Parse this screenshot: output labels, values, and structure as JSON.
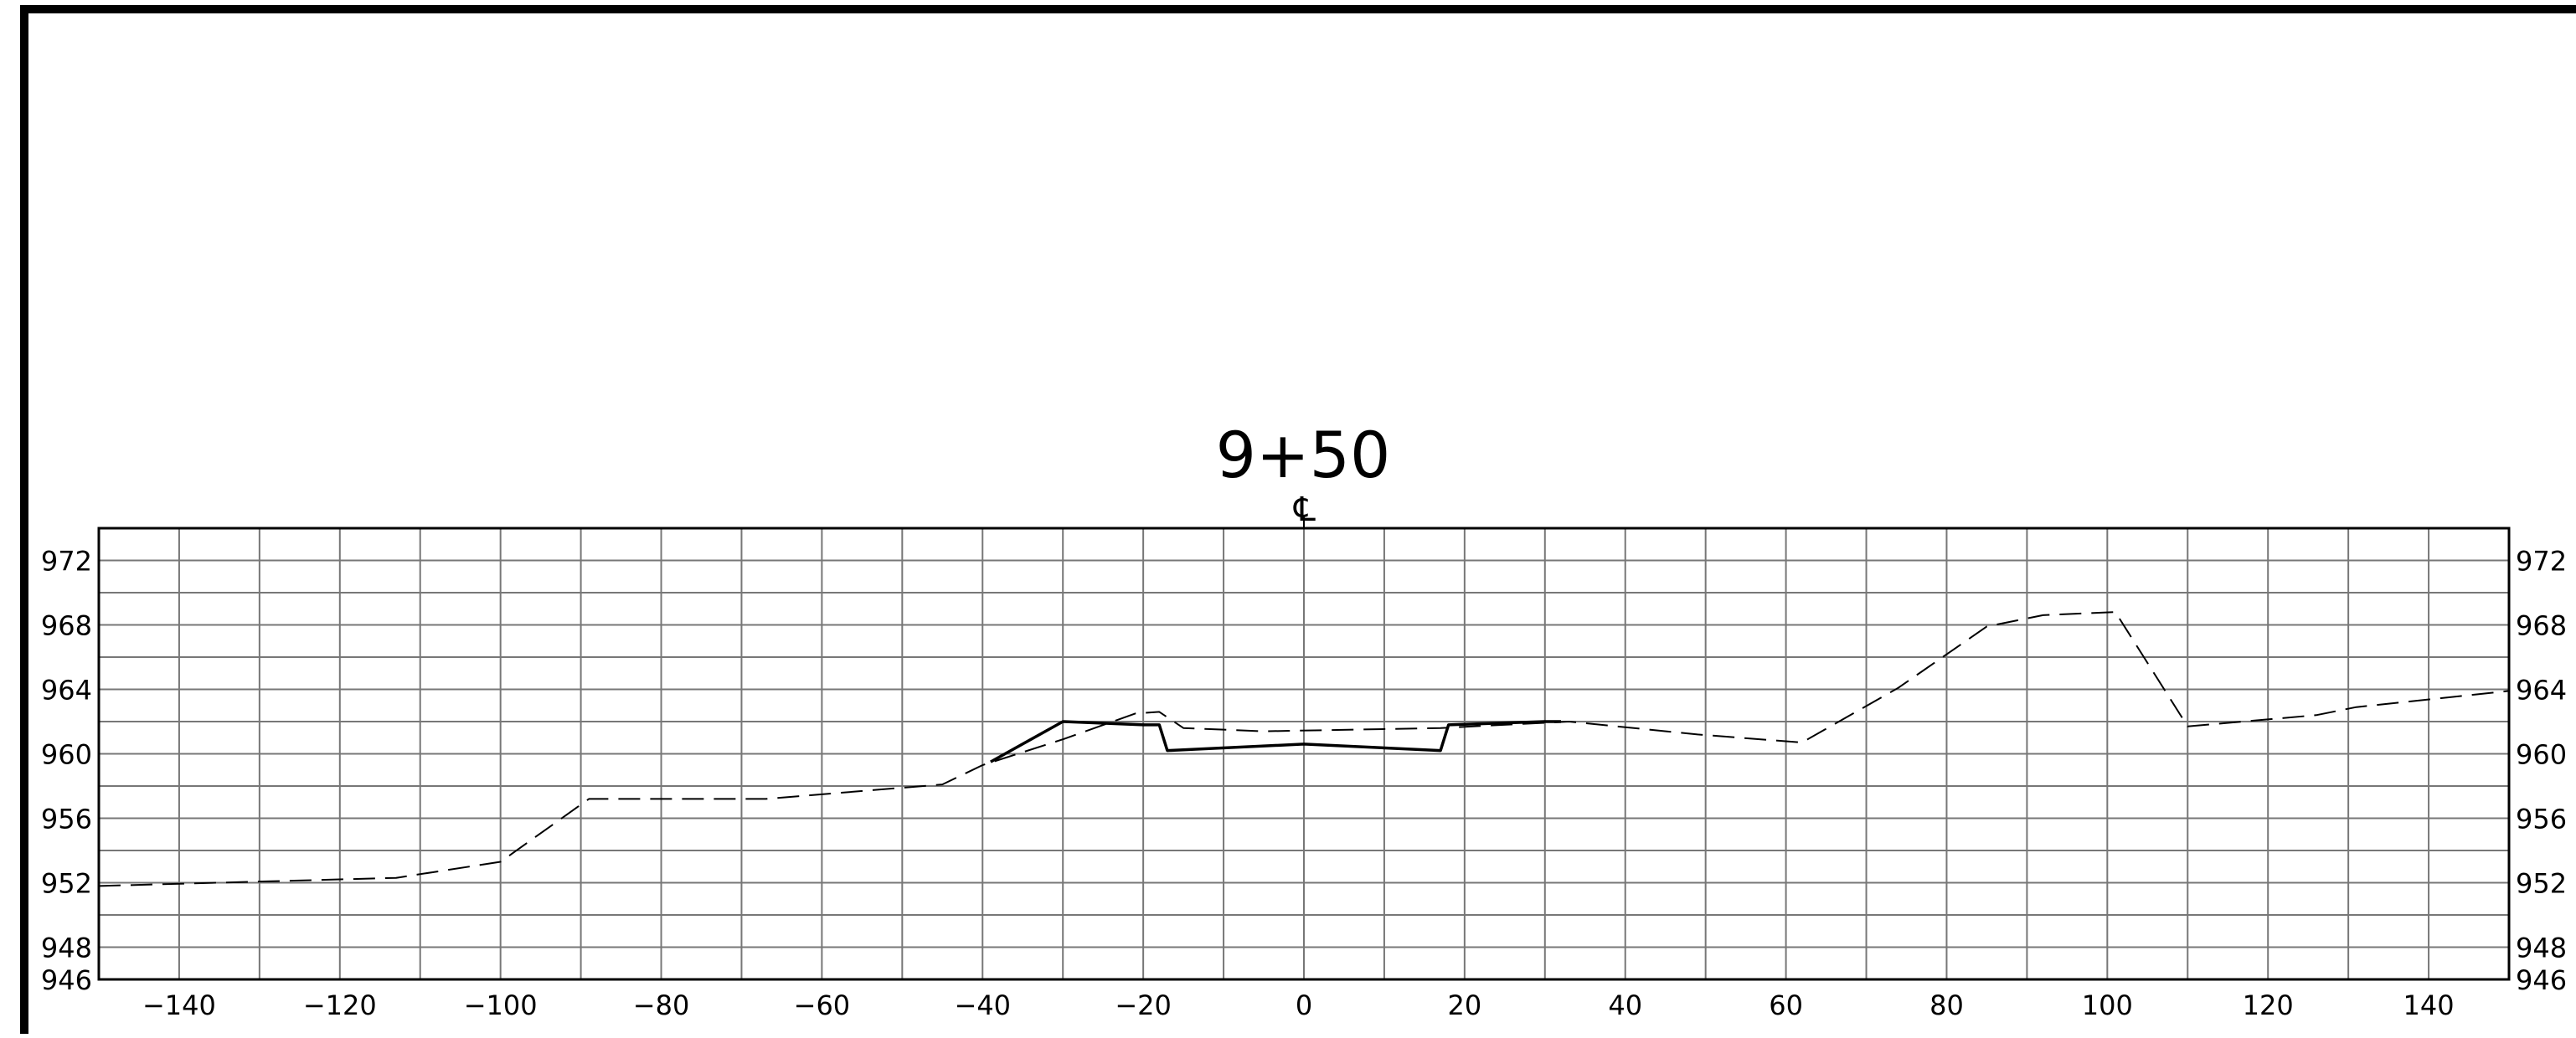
{
  "drawing": {
    "station_label": "9+50",
    "centerline_mark": "℄"
  },
  "chart_data": {
    "type": "line",
    "xlim": [
      -150,
      150
    ],
    "ylim": [
      946,
      974
    ],
    "x_ticks": [
      -140,
      -120,
      -100,
      -80,
      -60,
      -40,
      -20,
      0,
      20,
      40,
      60,
      80,
      100,
      120,
      140
    ],
    "x_tick_labels": [
      "−140",
      "−120",
      "−100",
      "−80",
      "−60",
      "−40",
      "−20",
      "0",
      "20",
      "40",
      "60",
      "80",
      "100",
      "120",
      "140"
    ],
    "y_ticks": [
      972,
      968,
      964,
      960,
      956,
      952,
      948,
      946
    ],
    "y_tick_labels": [
      "972",
      "968",
      "964",
      "960",
      "956",
      "952",
      "948",
      "946"
    ],
    "grid": true,
    "series": [
      {
        "style": "dashed",
        "points": [
          [
            -150,
            951.8
          ],
          [
            -128,
            952.1
          ],
          [
            -113,
            952.3
          ],
          [
            -100,
            953.3
          ],
          [
            -89,
            957.2
          ],
          [
            -67,
            957.2
          ],
          [
            -45,
            958.1
          ],
          [
            -40,
            959.3
          ],
          [
            -30,
            960.9
          ],
          [
            -21,
            962.5
          ],
          [
            -18,
            962.6
          ],
          [
            -15,
            961.6
          ],
          [
            -5,
            961.4
          ],
          [
            17,
            961.6
          ],
          [
            33,
            962.0
          ],
          [
            49,
            961.2
          ],
          [
            62,
            960.7
          ],
          [
            74,
            964.1
          ],
          [
            85,
            967.9
          ],
          [
            92,
            968.6
          ],
          [
            101,
            968.8
          ],
          [
            110,
            961.7
          ],
          [
            126,
            962.4
          ],
          [
            131,
            962.9
          ],
          [
            150,
            963.9
          ]
        ]
      },
      {
        "style": "solid",
        "points": [
          [
            -39,
            959.5
          ],
          [
            -30,
            962.0
          ],
          [
            -20,
            961.8
          ],
          [
            -18,
            961.8
          ],
          [
            -17,
            960.2
          ],
          [
            0,
            960.6
          ],
          [
            17,
            960.2
          ],
          [
            18,
            961.8
          ],
          [
            30,
            962.0
          ],
          [
            32,
            962.0
          ]
        ]
      }
    ]
  }
}
